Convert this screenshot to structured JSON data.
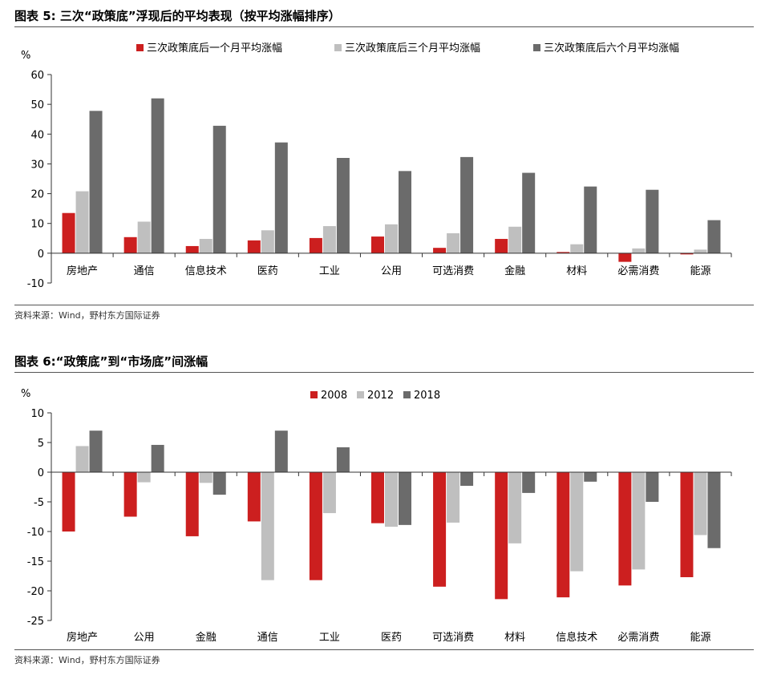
{
  "chart_data": [
    {
      "type": "bar",
      "title": "图表 5: 三次“政策底”浮现后的平均表现（按平均涨幅排序）",
      "ylabel": "%",
      "ylim": [
        -10,
        60
      ],
      "yticks": [
        60,
        50,
        40,
        30,
        20,
        10,
        0,
        -10
      ],
      "legend_position": "top",
      "categories": [
        "房地产",
        "通信",
        "信息技术",
        "医药",
        "工业",
        "公用",
        "可选消费",
        "金融",
        "材料",
        "必需消费",
        "能源"
      ],
      "series": [
        {
          "name": "三次政策底后一个月平均涨幅",
          "color": "#cc1f1f",
          "values": [
            13.5,
            5.4,
            2.4,
            4.3,
            5.1,
            5.6,
            1.8,
            4.8,
            0.4,
            -2.9,
            -0.4
          ]
        },
        {
          "name": "三次政策底后三个月平均涨幅",
          "color": "#bfbfbf",
          "values": [
            20.8,
            10.6,
            4.8,
            7.7,
            9.1,
            9.7,
            6.7,
            8.9,
            3.0,
            1.6,
            1.2
          ]
        },
        {
          "name": "三次政策底后六个月平均涨幅",
          "color": "#6b6b6b",
          "values": [
            47.8,
            52.0,
            42.8,
            37.2,
            32.0,
            27.6,
            32.3,
            27.0,
            22.4,
            21.3,
            11.1
          ]
        }
      ],
      "source": "资料来源：Wind，野村东方国际证券"
    },
    {
      "type": "bar",
      "title": "图表 6:“政策底”到“市场底”间涨幅",
      "ylabel": "%",
      "ylim": [
        -25,
        10
      ],
      "yticks": [
        10,
        5,
        0,
        -5,
        -10,
        -15,
        -20,
        -25
      ],
      "legend_position": "top",
      "categories": [
        "房地产",
        "公用",
        "金融",
        "通信",
        "工业",
        "医药",
        "可选消费",
        "材料",
        "信息技术",
        "必需消费",
        "能源"
      ],
      "series": [
        {
          "name": "2008",
          "color": "#cc1f1f",
          "values": [
            -10.0,
            -7.5,
            -10.8,
            -8.3,
            -18.2,
            -8.6,
            -19.3,
            -21.4,
            -21.1,
            -19.1,
            -17.7
          ]
        },
        {
          "name": "2012",
          "color": "#bfbfbf",
          "values": [
            4.4,
            -1.7,
            -1.8,
            -18.2,
            -6.9,
            -9.2,
            -8.5,
            -12.0,
            -16.7,
            -16.4,
            -10.6
          ]
        },
        {
          "name": "2018",
          "color": "#6b6b6b",
          "values": [
            7.0,
            4.6,
            -3.8,
            7.0,
            4.2,
            -8.9,
            -2.3,
            -3.5,
            -1.6,
            -5.0,
            -12.8
          ]
        }
      ],
      "source": "资料来源：Wind，野村东方国际证券"
    }
  ]
}
